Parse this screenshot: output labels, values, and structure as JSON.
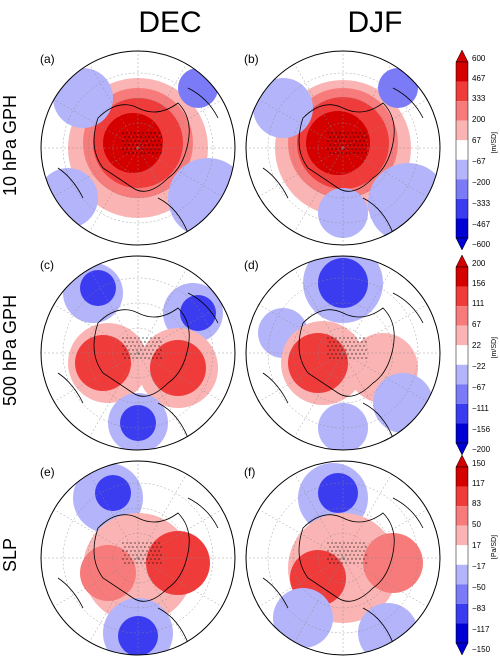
{
  "columns": [
    "DEC",
    "DJF"
  ],
  "rows": [
    {
      "title": "10 hPa GPH",
      "unit": "[m/SD]",
      "ticks": [
        "600",
        "467",
        "333",
        "200",
        "67",
        "−67",
        "−200",
        "−333",
        "−467",
        "−600"
      ],
      "panels": [
        "(a)",
        "(b)"
      ]
    },
    {
      "title": "500 hPa GPH",
      "unit": "[m/SD]",
      "ticks": [
        "200",
        "156",
        "111",
        "67",
        "22",
        "−22",
        "−67",
        "−111",
        "−156",
        "−200"
      ],
      "panels": [
        "(c)",
        "(d)"
      ]
    },
    {
      "title": "SLP",
      "unit": "[Pa/SD]",
      "ticks": [
        "150",
        "117",
        "83",
        "50",
        "17",
        "−17",
        "−50",
        "−83",
        "−117",
        "−150"
      ],
      "panels": [
        "(e)",
        "(f)"
      ]
    }
  ],
  "colors": {
    "red_dark": "#d40000",
    "red": "#f03b3b",
    "red_mid": "#f77b7b",
    "red_light": "#fbb4b4",
    "white": "#ffffff",
    "blue_light": "#b4b4fb",
    "blue_mid": "#7b7bf7",
    "blue": "#3b3bf0",
    "blue_dark": "#0000d4"
  }
}
